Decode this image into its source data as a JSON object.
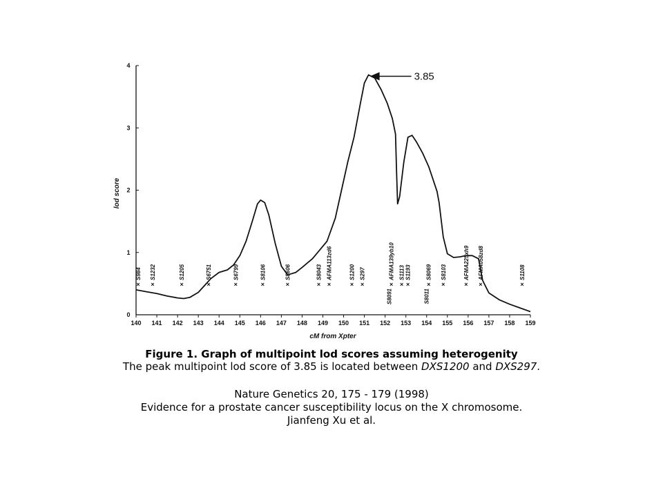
{
  "chart_data": {
    "type": "line",
    "xlabel": "cM from Xpter",
    "ylabel": "lod score",
    "xlim": [
      140,
      159
    ],
    "ylim": [
      0,
      4
    ],
    "x_ticks": [
      "140",
      "141",
      "142",
      "143",
      "144",
      "145",
      "146",
      "147",
      "148",
      "149",
      "150",
      "151",
      "152",
      "153",
      "154",
      "155",
      "156",
      "157",
      "158",
      "159"
    ],
    "y_ticks": [
      "0",
      "1",
      "2",
      "3",
      "4"
    ],
    "grid": false,
    "series": [
      {
        "x": [
          140.0,
          140.5,
          141.0,
          141.5,
          142.0,
          142.3,
          142.6,
          143.0,
          143.3,
          143.6,
          144.0,
          144.4,
          144.7,
          145.0,
          145.3,
          145.6,
          145.85,
          146.0,
          146.2,
          146.4,
          146.7,
          147.0,
          147.3,
          147.7,
          148.0,
          148.5,
          148.9,
          149.2,
          149.6,
          149.9,
          150.2,
          150.5,
          150.8,
          151.0,
          151.2,
          151.5,
          151.8,
          152.1,
          152.35,
          152.5,
          152.55,
          152.6,
          152.7,
          152.9,
          153.1,
          153.3,
          153.5,
          153.8,
          154.1,
          154.3,
          154.5,
          154.6,
          154.8,
          155.0,
          155.3,
          155.6,
          155.9,
          156.2,
          156.5,
          156.7,
          157.0,
          157.5,
          158.0,
          158.5,
          159.0
        ],
        "y": [
          0.4,
          0.37,
          0.34,
          0.3,
          0.27,
          0.26,
          0.28,
          0.36,
          0.47,
          0.58,
          0.68,
          0.72,
          0.8,
          0.95,
          1.18,
          1.5,
          1.78,
          1.84,
          1.8,
          1.6,
          1.15,
          0.78,
          0.64,
          0.68,
          0.76,
          0.9,
          1.06,
          1.18,
          1.55,
          2.0,
          2.45,
          2.85,
          3.38,
          3.72,
          3.85,
          3.8,
          3.62,
          3.4,
          3.15,
          2.9,
          2.3,
          1.78,
          1.9,
          2.45,
          2.85,
          2.88,
          2.78,
          2.6,
          2.38,
          2.18,
          1.98,
          1.8,
          1.25,
          0.98,
          0.92,
          0.93,
          0.95,
          0.95,
          0.9,
          0.55,
          0.35,
          0.24,
          0.17,
          0.11,
          0.05
        ]
      }
    ],
    "markers": [
      {
        "x": 140.1,
        "label": "S984"
      },
      {
        "x": 140.8,
        "label": "S1232"
      },
      {
        "x": 142.2,
        "label": "S1205"
      },
      {
        "x": 143.5,
        "label": "S6751"
      },
      {
        "x": 144.8,
        "label": "S6799"
      },
      {
        "x": 146.1,
        "label": "S8106"
      },
      {
        "x": 147.3,
        "label": "S8606"
      },
      {
        "x": 148.8,
        "label": "S8043"
      },
      {
        "x": 149.3,
        "label": "AFMA113zd6"
      },
      {
        "x": 150.4,
        "label": "S1200"
      },
      {
        "x": 150.9,
        "label": "S297"
      },
      {
        "x": 152.3,
        "label": "AFMA139yb10"
      },
      {
        "x": 152.8,
        "label": "S1113"
      },
      {
        "x": 153.1,
        "label": "S1193"
      },
      {
        "x": 154.1,
        "label": "S8069"
      },
      {
        "x": 154.8,
        "label": "S8103"
      },
      {
        "x": 155.9,
        "label": "AFMA225xh9"
      },
      {
        "x": 156.6,
        "label": "AFMA058zd8"
      },
      {
        "x": 158.6,
        "label": "S1108"
      }
    ],
    "lower_markers": [
      {
        "x": 152.2,
        "label": "S8091"
      },
      {
        "x": 154.0,
        "label": "S8011"
      }
    ],
    "annotation": {
      "text": "3.85",
      "x": 151.2,
      "y": 3.85
    }
  },
  "caption": {
    "title": "Figure 1. Graph of multipoint lod scores assuming heterogenity",
    "subtitle_prefix": "The peak multipoint lod score of 3.85 is located between ",
    "marker_a": "DXS1200",
    "and_text": " and ",
    "marker_b": "DXS297",
    "end": ".",
    "ref_journal": "Nature Genetics  20, 175 - 179 (1998)",
    "ref_title": "Evidence for a prostate cancer susceptibility locus on the X chromosome.",
    "ref_authors": "Jianfeng Xu et al."
  }
}
